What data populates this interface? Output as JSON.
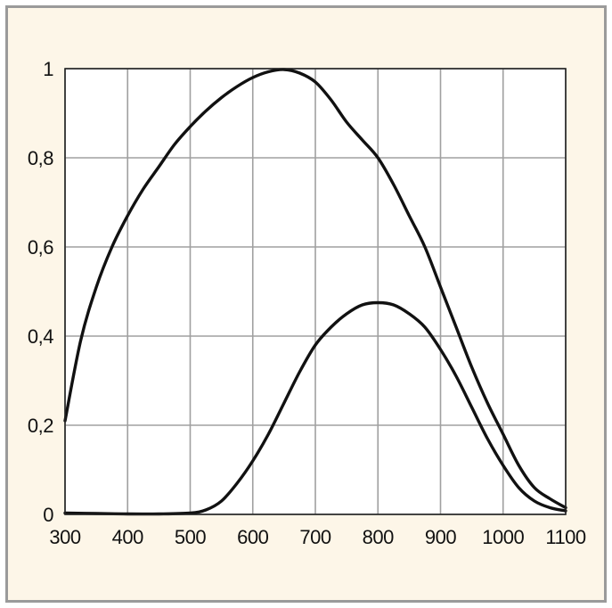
{
  "chart_data": {
    "type": "line",
    "title": "",
    "xlabel": "",
    "ylabel": "",
    "xlim": [
      300,
      1100
    ],
    "ylim": [
      0,
      1
    ],
    "x_ticks": [
      300,
      400,
      500,
      600,
      700,
      800,
      900,
      1000,
      1100
    ],
    "x_tick_labels": [
      "300",
      "400",
      "500",
      "600",
      "700",
      "800",
      "900",
      "1000",
      "1100"
    ],
    "y_ticks": [
      0,
      0.2,
      0.4,
      0.6,
      0.8,
      1
    ],
    "y_tick_labels": [
      "0",
      "0,2",
      "0,4",
      "0,6",
      "0,8",
      "1"
    ],
    "grid": true,
    "legend": "none",
    "colors": {
      "plot_background": "#ffffff",
      "outer_background": "#fdf6e8",
      "frame": "#9a9a9a",
      "grid": "#a0a0a0",
      "line": "#111111"
    },
    "series": [
      {
        "x": [
          300,
          325,
          350,
          375,
          400,
          425,
          450,
          475,
          500,
          525,
          550,
          575,
          600,
          625,
          650,
          675,
          700,
          725,
          750,
          775,
          800,
          825,
          850,
          875,
          900,
          925,
          950,
          975,
          1000,
          1025,
          1050,
          1075,
          1100
        ],
        "values": [
          0.21,
          0.39,
          0.51,
          0.6,
          0.67,
          0.73,
          0.78,
          0.83,
          0.87,
          0.905,
          0.935,
          0.96,
          0.98,
          0.993,
          0.998,
          0.99,
          0.97,
          0.93,
          0.88,
          0.84,
          0.8,
          0.74,
          0.67,
          0.6,
          0.51,
          0.42,
          0.33,
          0.25,
          0.18,
          0.11,
          0.06,
          0.035,
          0.015
        ]
      },
      {
        "x": [
          300,
          350,
          400,
          450,
          500,
          525,
          550,
          575,
          600,
          625,
          650,
          675,
          700,
          725,
          750,
          775,
          800,
          825,
          850,
          875,
          900,
          925,
          950,
          975,
          1000,
          1025,
          1050,
          1075,
          1100
        ],
        "values": [
          0.003,
          0.002,
          0.001,
          0.001,
          0.003,
          0.01,
          0.03,
          0.07,
          0.12,
          0.18,
          0.25,
          0.32,
          0.38,
          0.42,
          0.45,
          0.47,
          0.475,
          0.47,
          0.45,
          0.42,
          0.37,
          0.31,
          0.24,
          0.17,
          0.11,
          0.06,
          0.03,
          0.015,
          0.008
        ]
      }
    ]
  }
}
